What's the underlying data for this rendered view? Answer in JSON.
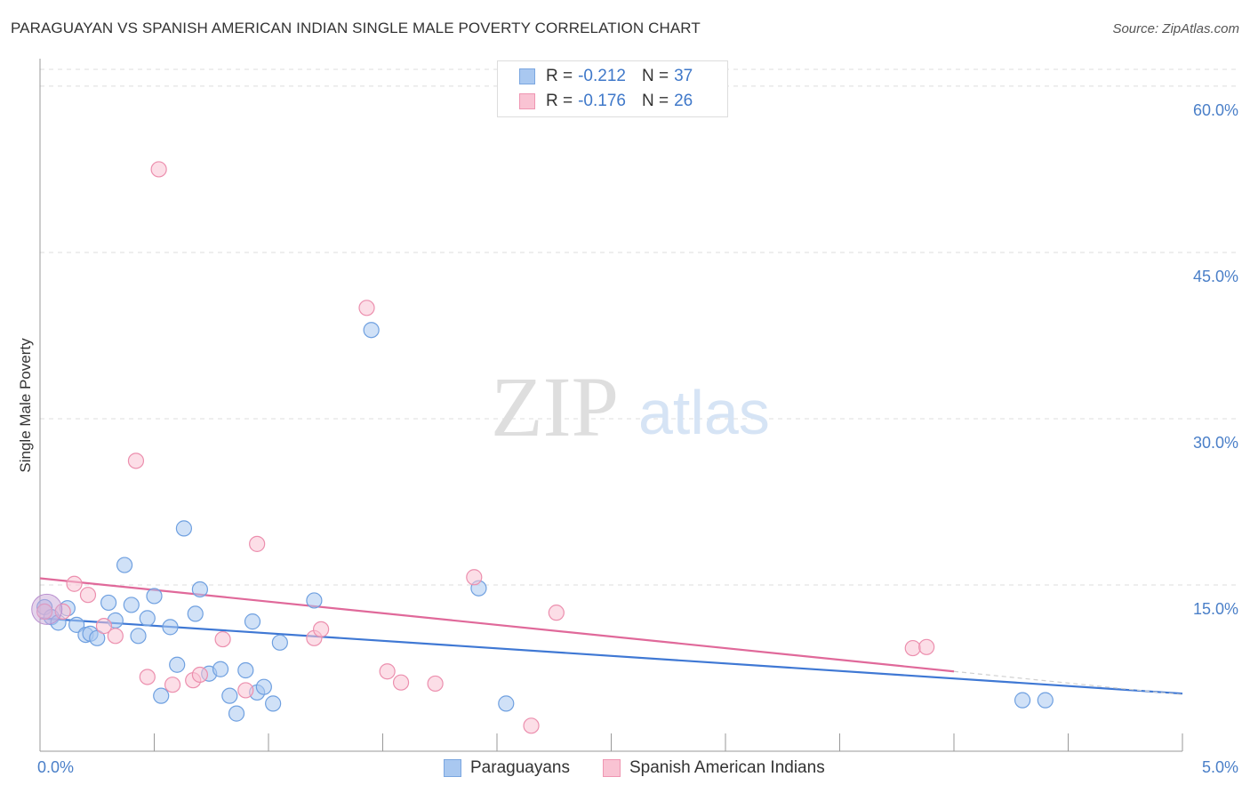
{
  "header": {
    "title": "PARAGUAYAN VS SPANISH AMERICAN INDIAN SINGLE MALE POVERTY CORRELATION CHART",
    "source": "Source: ZipAtlas.com"
  },
  "watermark": {
    "zip": "ZIP",
    "atlas": "atlas"
  },
  "legend": {
    "rows": [
      {
        "r_label": "R = ",
        "r_value": "-0.212",
        "n_label": "N = ",
        "n_value": "37",
        "color": "#a9c8f0",
        "border": "#7aa6e0"
      },
      {
        "r_label": "R = ",
        "r_value": "-0.176",
        "n_label": "N = ",
        "n_value": "26",
        "color": "#f9c3d3",
        "border": "#ef96b2"
      }
    ]
  },
  "bottom_legend": {
    "items": [
      {
        "label": "Paraguayans",
        "color": "#a9c8f0",
        "border": "#7aa6e0"
      },
      {
        "label": "Spanish American Indians",
        "color": "#f9c3d3",
        "border": "#ef96b2"
      }
    ]
  },
  "chart_data": {
    "type": "scatter",
    "title": "PARAGUAYAN VS SPANISH AMERICAN INDIAN SINGLE MALE POVERTY CORRELATION CHART",
    "xlabel": "",
    "ylabel": "Single Male Poverty",
    "xlim": [
      0,
      5
    ],
    "ylim": [
      0,
      62
    ],
    "x_tick_labels": [
      "0.0%",
      "5.0%"
    ],
    "y_ticks": [
      15,
      30,
      45,
      60
    ],
    "y_tick_labels": [
      "15.0%",
      "30.0%",
      "45.0%",
      "60.0%"
    ],
    "grid": true,
    "series": [
      {
        "name": "Paraguayans",
        "color": "#6fa0e0",
        "fill": "#a9c8f0",
        "trend": {
          "x": [
            0,
            5
          ],
          "y": [
            12.0,
            5.2
          ],
          "color": "#3f78d4"
        },
        "points": [
          [
            0.02,
            13.0
          ],
          [
            0.05,
            12.1
          ],
          [
            0.08,
            11.6
          ],
          [
            0.12,
            12.9
          ],
          [
            0.16,
            11.4
          ],
          [
            0.2,
            10.5
          ],
          [
            0.22,
            10.6
          ],
          [
            0.25,
            10.2
          ],
          [
            0.3,
            13.4
          ],
          [
            0.33,
            11.8
          ],
          [
            0.37,
            16.8
          ],
          [
            0.4,
            13.2
          ],
          [
            0.43,
            10.4
          ],
          [
            0.47,
            12.0
          ],
          [
            0.5,
            14.0
          ],
          [
            0.53,
            5.0
          ],
          [
            0.57,
            11.2
          ],
          [
            0.6,
            7.8
          ],
          [
            0.63,
            20.1
          ],
          [
            0.68,
            12.4
          ],
          [
            0.7,
            14.6
          ],
          [
            0.74,
            7.0
          ],
          [
            0.79,
            7.4
          ],
          [
            0.83,
            5.0
          ],
          [
            0.86,
            3.4
          ],
          [
            0.9,
            7.3
          ],
          [
            0.93,
            11.7
          ],
          [
            0.95,
            5.3
          ],
          [
            0.98,
            5.8
          ],
          [
            1.02,
            4.3
          ],
          [
            1.05,
            9.8
          ],
          [
            1.2,
            13.6
          ],
          [
            1.45,
            38.0
          ],
          [
            1.92,
            14.7
          ],
          [
            2.04,
            4.3
          ],
          [
            4.3,
            4.6
          ],
          [
            4.4,
            4.6
          ]
        ]
      },
      {
        "name": "Spanish American Indians",
        "color": "#ec8fae",
        "fill": "#f9c3d3",
        "trend": {
          "x": [
            0,
            4.0
          ],
          "y": [
            15.6,
            7.2
          ],
          "color": "#e0699a"
        },
        "points": [
          [
            0.02,
            12.6
          ],
          [
            0.1,
            12.6
          ],
          [
            0.15,
            15.1
          ],
          [
            0.21,
            14.1
          ],
          [
            0.28,
            11.3
          ],
          [
            0.33,
            10.4
          ],
          [
            0.42,
            26.2
          ],
          [
            0.47,
            6.7
          ],
          [
            0.52,
            52.5
          ],
          [
            0.58,
            6.0
          ],
          [
            0.67,
            6.4
          ],
          [
            0.7,
            6.9
          ],
          [
            0.8,
            10.1
          ],
          [
            0.9,
            5.5
          ],
          [
            0.95,
            18.7
          ],
          [
            1.2,
            10.2
          ],
          [
            1.23,
            11.0
          ],
          [
            1.43,
            40.0
          ],
          [
            1.52,
            7.2
          ],
          [
            1.58,
            6.2
          ],
          [
            1.73,
            6.1
          ],
          [
            1.9,
            15.7
          ],
          [
            2.15,
            2.3
          ],
          [
            2.26,
            12.5
          ],
          [
            3.82,
            9.3
          ],
          [
            3.88,
            9.4
          ]
        ]
      }
    ]
  }
}
